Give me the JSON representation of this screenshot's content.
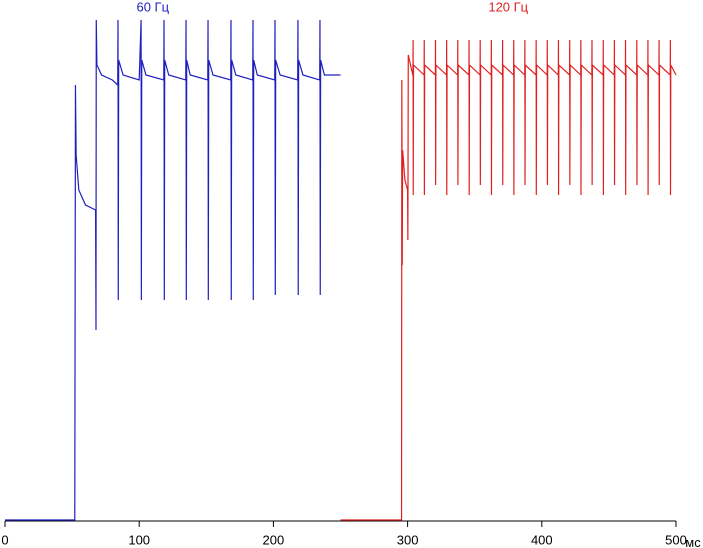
{
  "chart_data": {
    "type": "line",
    "x_label": "мс",
    "xlim": [
      0,
      500
    ],
    "xticks": [
      0,
      100,
      200,
      300,
      400,
      500
    ],
    "series": [
      {
        "name": "60 Гц",
        "color": "#1f1fbf",
        "x": [
          0,
          50,
          52,
          52.5,
          53,
          55,
          60,
          67.5,
          67.8,
          68,
          68.5,
          72,
          80,
          84,
          84.2,
          84.4,
          84.7,
          88,
          100,
          101.4,
          101.6,
          101.9,
          105,
          118.3,
          118.5,
          118.7,
          119,
          122,
          134.7,
          134.9,
          135.1,
          135.4,
          138,
          151.1,
          151.3,
          151.5,
          151.8,
          155,
          168.2,
          168.4,
          168.6,
          168.9,
          172,
          184.6,
          184.8,
          185,
          185.3,
          188,
          201,
          201.2,
          201.4,
          201.7,
          205,
          218.1,
          218.3,
          218.5,
          218.8,
          222,
          234.5,
          234.7,
          234.9,
          235.2,
          238,
          250
        ],
        "values": [
          0,
          0,
          0,
          87,
          73,
          66,
          63,
          62,
          38,
          100,
          91,
          89,
          88,
          87,
          100,
          44,
          92,
          89,
          88,
          100,
          44,
          92,
          89,
          88,
          100,
          44,
          92,
          89,
          88,
          100,
          44,
          92,
          89,
          88,
          100,
          44,
          92,
          89,
          88,
          100,
          44,
          92,
          89,
          88,
          100,
          44,
          92,
          89,
          88,
          100,
          45,
          92,
          89,
          88,
          100,
          45,
          92,
          89,
          88,
          100,
          45,
          92,
          89,
          89
        ]
      },
      {
        "name": "120 Гц",
        "color": "#e02020",
        "x": [
          250,
          295.5,
          295.7,
          296,
          296.3,
          298,
          300,
          300.2,
          300.5,
          303.9,
          304,
          304.1,
          304.2,
          304.4,
          312.3,
          312.4,
          312.5,
          312.7,
          320.7,
          320.8,
          320.9,
          321.1,
          329,
          329.1,
          329.2,
          329.4,
          337.3,
          337.4,
          337.5,
          337.7,
          345.7,
          345.8,
          345.9,
          346.1,
          354,
          354.1,
          354.2,
          354.4,
          362.3,
          362.4,
          362.5,
          362.7,
          370.7,
          370.8,
          370.9,
          371.1,
          379,
          379.1,
          379.2,
          379.4,
          387.3,
          387.4,
          387.5,
          387.7,
          395.7,
          395.8,
          395.9,
          396.1,
          404,
          404.1,
          404.2,
          404.4,
          412.3,
          412.4,
          412.5,
          412.7,
          420.7,
          420.8,
          420.9,
          421.1,
          429,
          429.1,
          429.2,
          429.4,
          437.3,
          437.4,
          437.5,
          437.7,
          445.7,
          445.8,
          445.9,
          446.1,
          454,
          454.1,
          454.2,
          454.4,
          462.3,
          462.4,
          462.5,
          462.7,
          470.7,
          470.8,
          470.9,
          471.1,
          479,
          479.1,
          479.2,
          479.4,
          487.3,
          487.4,
          487.5,
          487.7,
          495.7,
          495.8,
          495.9,
          496.1,
          500
        ],
        "values": [
          0,
          0,
          88,
          51,
          74,
          68,
          66,
          56,
          93,
          89,
          89,
          96,
          65,
          91,
          89,
          96,
          65,
          91,
          89,
          96,
          67,
          91,
          89,
          96,
          65,
          91,
          89,
          96,
          67,
          91,
          89,
          96,
          65,
          91,
          89,
          96,
          67,
          91,
          89,
          96,
          65,
          91,
          89,
          96,
          67,
          91,
          89,
          96,
          65,
          91,
          89,
          96,
          67,
          91,
          89,
          96,
          65,
          91,
          89,
          96,
          67,
          91,
          89,
          96,
          65,
          91,
          89,
          96,
          67,
          91,
          89,
          96,
          65,
          91,
          89,
          96,
          67,
          91,
          89,
          96,
          65,
          91,
          89,
          96,
          67,
          91,
          89,
          96,
          65,
          91,
          89,
          96,
          67,
          91,
          89,
          96,
          65,
          91,
          89,
          96,
          67,
          91,
          89,
          96,
          65,
          91,
          89
        ]
      }
    ]
  }
}
